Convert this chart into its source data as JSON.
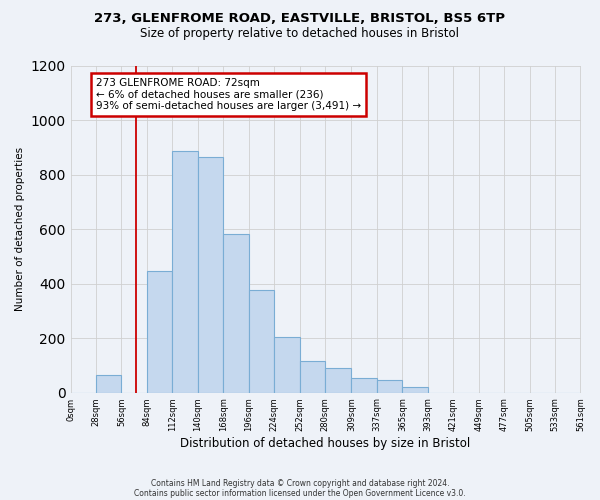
{
  "title1": "273, GLENFROME ROAD, EASTVILLE, BRISTOL, BS5 6TP",
  "title2": "Size of property relative to detached houses in Bristol",
  "xlabel": "Distribution of detached houses by size in Bristol",
  "ylabel": "Number of detached properties",
  "bar_values": [
    0,
    65,
    0,
    445,
    885,
    865,
    580,
    375,
    205,
    115,
    90,
    55,
    45,
    20,
    0,
    0,
    0,
    0,
    0,
    0
  ],
  "bin_edges": [
    0,
    28,
    56,
    84,
    112,
    140,
    168,
    196,
    224,
    252,
    280,
    309,
    337,
    365,
    393,
    421,
    449,
    477,
    505,
    533,
    561
  ],
  "tick_labels": [
    "0sqm",
    "28sqm",
    "56sqm",
    "84sqm",
    "112sqm",
    "140sqm",
    "168sqm",
    "196sqm",
    "224sqm",
    "252sqm",
    "280sqm",
    "309sqm",
    "337sqm",
    "365sqm",
    "393sqm",
    "421sqm",
    "449sqm",
    "477sqm",
    "505sqm",
    "533sqm",
    "561sqm"
  ],
  "bar_color": "#c5d8ee",
  "bar_edge_color": "#7aadd4",
  "property_size": 72,
  "vline_color": "#cc0000",
  "annotation_line1": "273 GLENFROME ROAD: 72sqm",
  "annotation_line2": "← 6% of detached houses are smaller (236)",
  "annotation_line3": "93% of semi-detached houses are larger (3,491) →",
  "annotation_box_color": "#ffffff",
  "annotation_box_edge": "#cc0000",
  "ylim": [
    0,
    1200
  ],
  "yticks": [
    0,
    200,
    400,
    600,
    800,
    1000,
    1200
  ],
  "footnote1": "Contains HM Land Registry data © Crown copyright and database right 2024.",
  "footnote2": "Contains public sector information licensed under the Open Government Licence v3.0.",
  "background_color": "#eef2f8",
  "title_fontsize": 9.5,
  "subtitle_fontsize": 8.5
}
